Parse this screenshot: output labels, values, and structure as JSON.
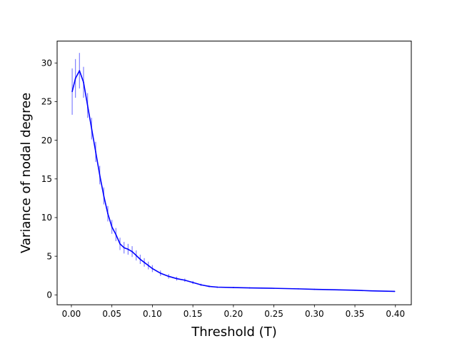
{
  "chart_data": {
    "type": "line",
    "title": "",
    "xlabel": "Threshold (T)",
    "ylabel": "Variance of nodal degree",
    "xlim": [
      -0.0176,
      0.4196
    ],
    "ylim": [
      -1.28,
      32.83
    ],
    "xticks": [
      0.0,
      0.05,
      0.1,
      0.15,
      0.2,
      0.25,
      0.3,
      0.35,
      0.4
    ],
    "xtick_labels": [
      "0.00",
      "0.05",
      "0.10",
      "0.15",
      "0.20",
      "0.25",
      "0.30",
      "0.35",
      "0.40"
    ],
    "yticks": [
      0,
      5,
      10,
      15,
      20,
      25,
      30
    ],
    "ytick_labels": [
      "0",
      "5",
      "10",
      "15",
      "20",
      "25",
      "30"
    ],
    "grid": false,
    "series": [
      {
        "color": "#0000ff",
        "error_color": "#8080ff",
        "x": [
          0.001,
          0.005,
          0.01,
          0.015,
          0.02,
          0.025,
          0.03,
          0.035,
          0.04,
          0.045,
          0.05,
          0.055,
          0.06,
          0.065,
          0.07,
          0.075,
          0.08,
          0.085,
          0.09,
          0.095,
          0.1,
          0.11,
          0.12,
          0.13,
          0.14,
          0.15,
          0.16,
          0.17,
          0.18,
          0.2,
          0.22,
          0.25,
          0.28,
          0.3,
          0.33,
          0.35,
          0.37,
          0.399
        ],
        "y": [
          26.3,
          28.0,
          29.0,
          27.5,
          24.5,
          21.5,
          18.5,
          15.5,
          12.8,
          10.5,
          8.8,
          7.8,
          6.6,
          6.1,
          5.9,
          5.6,
          5.1,
          4.6,
          4.2,
          3.8,
          3.4,
          2.8,
          2.4,
          2.1,
          1.9,
          1.6,
          1.3,
          1.1,
          1.0,
          0.95,
          0.9,
          0.85,
          0.78,
          0.72,
          0.65,
          0.6,
          0.52,
          0.45
        ],
        "err": [
          3.0,
          2.5,
          2.3,
          2.0,
          1.6,
          1.4,
          1.3,
          1.2,
          1.1,
          1.0,
          0.9,
          0.85,
          0.8,
          0.75,
          0.7,
          0.7,
          0.65,
          0.6,
          0.55,
          0.5,
          0.45,
          0.35,
          0.3,
          0.25,
          0.22,
          0.2,
          0.15,
          0.12,
          0.1,
          0.08,
          0.07,
          0.06,
          0.05,
          0.05,
          0.05,
          0.05,
          0.05,
          0.05
        ]
      }
    ]
  }
}
